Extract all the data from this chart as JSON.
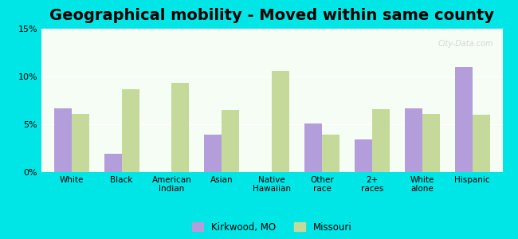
{
  "title": "Geographical mobility - Moved within same county",
  "categories": [
    "White",
    "Black",
    "American\nIndian",
    "Asian",
    "Native\nHawaiian",
    "Other\nrace",
    "2+\nraces",
    "White\nalone",
    "Hispanic"
  ],
  "kirkwood": [
    6.7,
    1.9,
    0.0,
    3.9,
    0.0,
    5.1,
    3.4,
    6.7,
    11.0
  ],
  "missouri": [
    6.1,
    8.7,
    9.3,
    6.5,
    10.6,
    3.9,
    6.6,
    6.1,
    6.0
  ],
  "kirkwood_color": "#b39ddb",
  "missouri_color": "#c5d99a",
  "background_outer": "#00e5e5",
  "background_inner_top": "#f5fdf5",
  "ylim": [
    0,
    15
  ],
  "yticks": [
    0,
    5,
    10,
    15
  ],
  "ytick_labels": [
    "0%",
    "5%",
    "10%",
    "15%"
  ],
  "legend_kirkwood": "Kirkwood, MO",
  "legend_missouri": "Missouri",
  "title_fontsize": 14,
  "bar_width": 0.35,
  "watermark": "City-Data.com"
}
